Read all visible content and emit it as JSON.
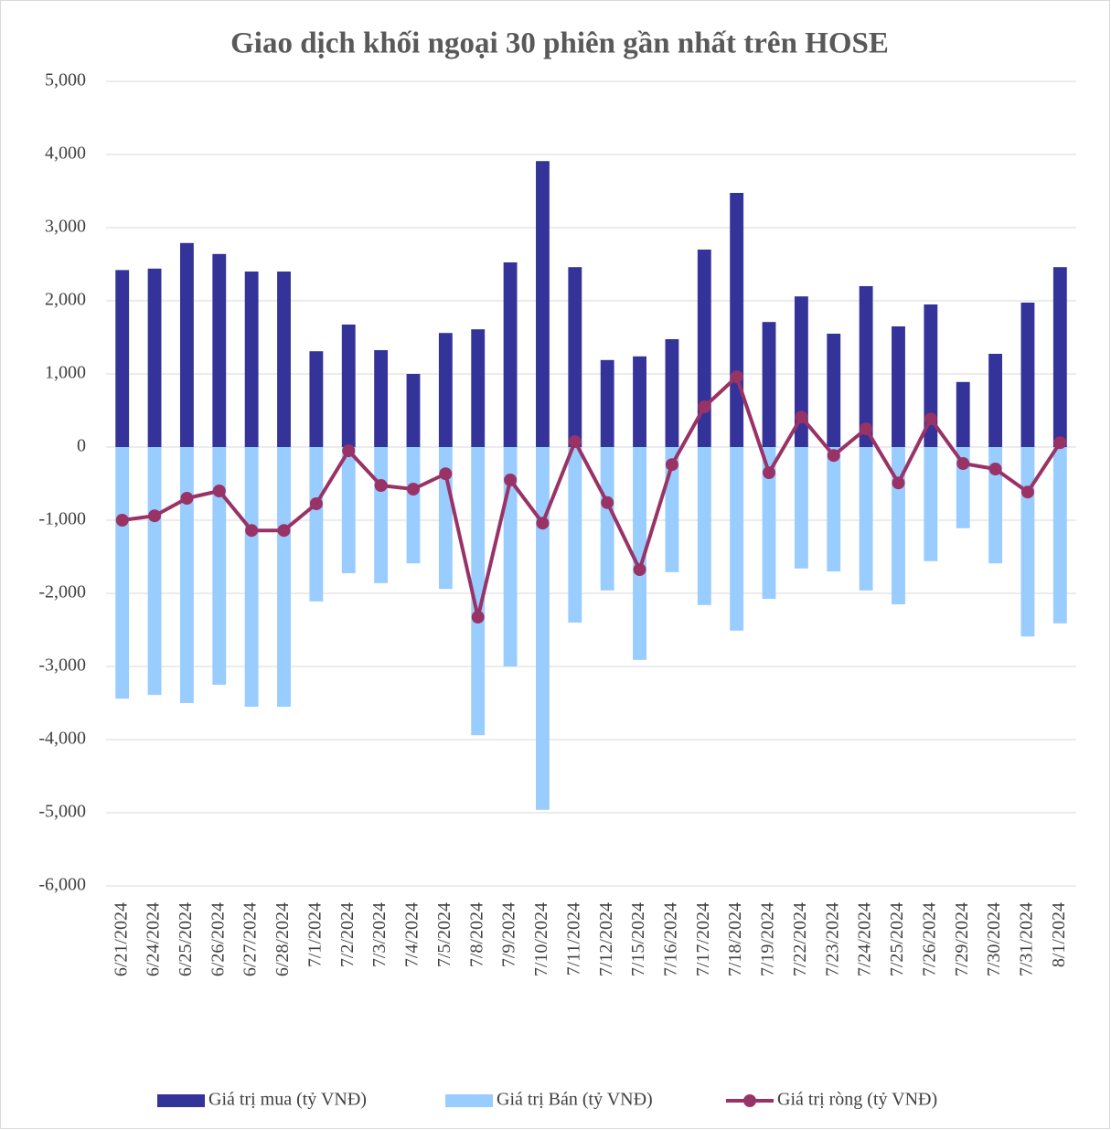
{
  "chart_data": {
    "type": "bar_line",
    "title": "Giao dịch khối ngoại 30 phiên gần nhất trên HOSE",
    "categories": [
      "6/21/2024",
      "6/24/2024",
      "6/25/2024",
      "6/26/2024",
      "6/27/2024",
      "6/28/2024",
      "7/1/2024",
      "7/2/2024",
      "7/3/2024",
      "7/4/2024",
      "7/5/2024",
      "7/8/2024",
      "7/9/2024",
      "7/10/2024",
      "7/11/2024",
      "7/12/2024",
      "7/15/2024",
      "7/16/2024",
      "7/17/2024",
      "7/18/2024",
      "7/19/2024",
      "7/22/2024",
      "7/23/2024",
      "7/24/2024",
      "7/25/2024",
      "7/26/2024",
      "7/29/2024",
      "7/30/2024",
      "7/31/2024",
      "8/1/2024"
    ],
    "series": [
      {
        "name": "Giá trị mua (tỷ VNĐ)",
        "type": "bar",
        "color": "#333399",
        "values": [
          2420,
          2440,
          2790,
          2640,
          2400,
          2400,
          1310,
          1675,
          1325,
          1000,
          1560,
          1610,
          2525,
          3910,
          2460,
          1190,
          1240,
          1475,
          2700,
          3475,
          1710,
          2060,
          1550,
          2200,
          1650,
          1950,
          890,
          1275,
          1975,
          2460
        ]
      },
      {
        "name": "Giá trị Bán (tỷ VNĐ)",
        "type": "bar",
        "color": "#99ccff",
        "values": [
          -3440,
          -3390,
          -3500,
          -3250,
          -3550,
          -3550,
          -2110,
          -1725,
          -1860,
          -1590,
          -1940,
          -3940,
          -3000,
          -4960,
          -2400,
          -1960,
          -2910,
          -1710,
          -2160,
          -2510,
          -2075,
          -1660,
          -1700,
          -1960,
          -2150,
          -1560,
          -1110,
          -1590,
          -2590,
          -2410
        ]
      },
      {
        "name": "Giá trị ròng (tỷ VNĐ)",
        "type": "line",
        "color": "#993366",
        "values": [
          -1000,
          -940,
          -700,
          -600,
          -1140,
          -1140,
          -775,
          -50,
          -525,
          -575,
          -365,
          -2325,
          -450,
          -1040,
          75,
          -760,
          -1675,
          -240,
          550,
          960,
          -350,
          410,
          -115,
          250,
          -490,
          385,
          -225,
          -300,
          -615,
          60
        ]
      }
    ],
    "ylim": [
      -6000,
      5000
    ],
    "yticks": [
      {
        "value": -6000,
        "label": "-6,000"
      },
      {
        "value": -5000,
        "label": "-5,000"
      },
      {
        "value": -4000,
        "label": "-4,000"
      },
      {
        "value": -3000,
        "label": "-3,000"
      },
      {
        "value": -2000,
        "label": "-2,000"
      },
      {
        "value": -1000,
        "label": "-1,000"
      },
      0,
      {
        "value": 1000,
        "label": "1,000"
      },
      {
        "value": 2000,
        "label": "2,000"
      },
      {
        "value": 3000,
        "label": "3,000"
      },
      {
        "value": 4000,
        "label": "4,000"
      },
      {
        "value": 5000,
        "label": "5,000"
      }
    ],
    "grid": true,
    "legend": "bottom"
  }
}
